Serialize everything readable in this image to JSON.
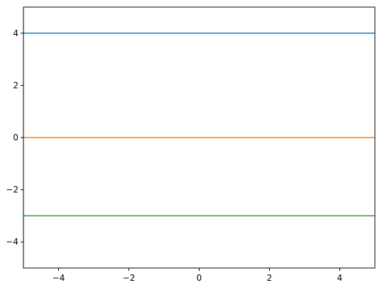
{
  "chart_data": {
    "type": "line",
    "title": "",
    "xlabel": "",
    "ylabel": "",
    "xlim": [
      -5,
      5
    ],
    "ylim": [
      -5,
      5
    ],
    "grid": false,
    "x_ticks": [
      -4,
      -2,
      0,
      2,
      4
    ],
    "y_ticks": [
      -4,
      -2,
      0,
      2,
      4
    ],
    "x_tick_labels": [
      "−4",
      "−2",
      "0",
      "2",
      "4"
    ],
    "y_tick_labels": [
      "−4",
      "−2",
      "0",
      "2",
      "4"
    ],
    "series": [
      {
        "x": [
          -5,
          5
        ],
        "y": [
          4,
          4
        ],
        "color": "#1f77b4"
      },
      {
        "x": [
          -5,
          5
        ],
        "y": [
          0,
          0
        ],
        "color": "#ff7f0e"
      },
      {
        "x": [
          -5,
          5
        ],
        "y": [
          -3,
          -3
        ],
        "color": "#2ca02c"
      }
    ]
  }
}
